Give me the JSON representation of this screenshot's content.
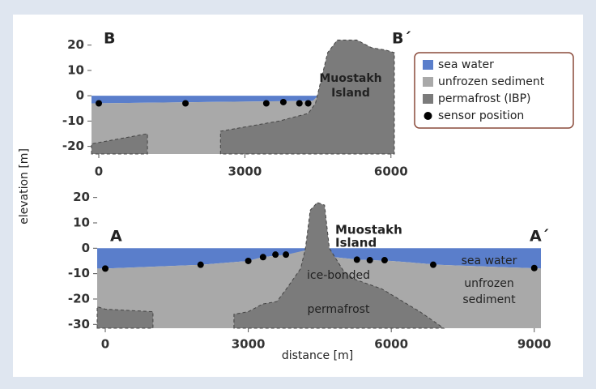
{
  "y_label": "elevation [m]",
  "x_label": "distance [m]",
  "chart_data": [
    {
      "type": "section",
      "xlim": [
        -150,
        6070
      ],
      "ylim": [
        -23,
        25
      ],
      "xticks": [
        0,
        3000,
        6000
      ],
      "yticks": [
        -20,
        -10,
        0,
        10,
        20
      ],
      "labels": [
        [
          "B"
        ],
        [
          "B´"
        ],
        [
          "Muostakh",
          "Island"
        ]
      ],
      "series": [
        {
          "name": "sea water",
          "color": "#5a7ecb",
          "kind": "area",
          "x": [
            -150,
            4500,
            4400,
            -150
          ],
          "values": [
            0,
            0,
            -2,
            -3
          ]
        },
        {
          "name": "unfrozen sediment",
          "color": "#a9a9a9",
          "kind": "area",
          "x": [
            -150,
            4400,
            4500,
            6070,
            6070,
            -150
          ],
          "values": [
            -3,
            -2,
            0,
            0,
            -23,
            -23
          ]
        },
        {
          "name": "permafrost (IBP)",
          "color": "#7b7b7b",
          "kind": "area",
          "x": [
            2500,
            2500,
            3400,
            3700,
            4100,
            4300,
            4450,
            4550,
            4700,
            4900,
            5300,
            5600,
            5900,
            6070,
            6070,
            null,
            -150,
            -150,
            1000,
            1000
          ],
          "values": [
            -23,
            -14,
            -11,
            -10,
            -8,
            -7,
            -3,
            5,
            17,
            22,
            22,
            19,
            18,
            17,
            -23,
            null,
            -23,
            -19,
            -15,
            -23
          ]
        },
        {
          "name": "sensor position",
          "color": "#000000",
          "kind": "points",
          "x": [
            0,
            1780,
            3440,
            3790,
            4120,
            4300
          ],
          "values": [
            -3,
            -3,
            -3,
            -2.5,
            -3,
            -3
          ]
        }
      ]
    },
    {
      "type": "section",
      "xlim": [
        -170,
        9140
      ],
      "ylim": [
        -31.5,
        25
      ],
      "xticks": [
        0,
        3000,
        6000,
        9000
      ],
      "yticks": [
        -30,
        -20,
        -10,
        0,
        10,
        20
      ],
      "labels": [
        [
          "A"
        ],
        [
          "A´"
        ],
        [
          "Muostakh",
          "Island"
        ],
        [
          "sea water"
        ],
        [
          "unfrozen",
          "sediment"
        ],
        [
          "ice-bonded",
          "permafrost"
        ]
      ],
      "series": [
        {
          "color": "#5a7ecb",
          "kind": "area",
          "x": [
            -170,
            9140,
            9140,
            7000,
            6000,
            5300,
            4800,
            3800,
            3300,
            3000,
            2000,
            0,
            -170
          ],
          "values": [
            0,
            0,
            -8,
            -6.5,
            -5,
            -4.5,
            -3.5,
            -2.5,
            -3.5,
            -5,
            -6.5,
            -8,
            -8
          ]
        },
        {
          "color": "#a9a9a9",
          "kind": "area",
          "x": [
            -170,
            0,
            2000,
            3000,
            3300,
            3800,
            4150,
            4700,
            4800,
            5300,
            6000,
            7000,
            9140,
            9140,
            -170
          ],
          "values": [
            -8,
            -8,
            -6.5,
            -5,
            -3.5,
            -2.5,
            -1,
            0,
            -3.5,
            -4.5,
            -5,
            -6.5,
            -8,
            -31.5,
            -31.5
          ]
        },
        {
          "color": "#7b7b7b",
          "kind": "area",
          "x": [
            2700,
            2700,
            3000,
            3300,
            3600,
            3800,
            4100,
            4200,
            4300,
            4450,
            4600,
            4700,
            5000,
            5200,
            5500,
            5800,
            6600,
            7100,
            null,
            -170,
            -170,
            0,
            1000,
            1000
          ],
          "values": [
            -31.5,
            -26,
            -25,
            -22,
            -21,
            -16,
            -8,
            0,
            15,
            18,
            17,
            0,
            -9,
            -12,
            -14,
            -16,
            -25,
            -31.5,
            null,
            -31.5,
            -23,
            -24,
            -25,
            -31.5
          ]
        },
        {
          "color": "#000000",
          "kind": "points",
          "x": [
            0,
            2000,
            3000,
            3310,
            3570,
            3790,
            5280,
            5550,
            5860,
            6880,
            9000
          ],
          "values": [
            -8,
            -6.5,
            -5,
            -3.5,
            -2.5,
            -2.5,
            -4.5,
            -4.7,
            -4.7,
            -6.5,
            -7.8
          ]
        }
      ]
    }
  ]
}
